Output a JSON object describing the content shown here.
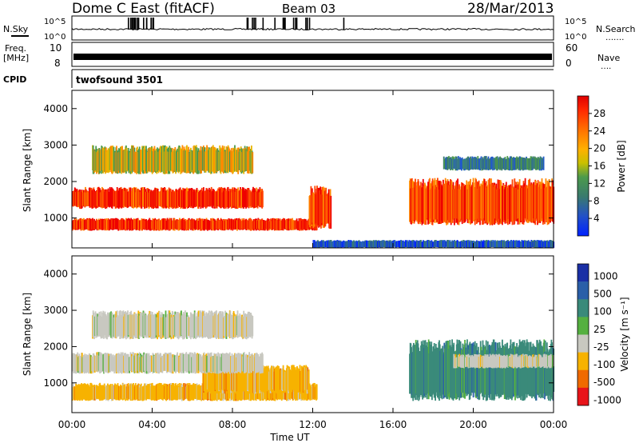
{
  "header": {
    "station": "Dome C East (fitACF)",
    "beam": "Beam 03",
    "date": "28/Mar/2013"
  },
  "left_labels": {
    "nsky": "N.Sky",
    "freq_line1": "Freq.",
    "freq_line2": "[MHz]",
    "cpid": "CPID"
  },
  "right_labels": {
    "nsearch": "N.Search",
    "nsearch_dots": "․․․․․․․",
    "nave": "Nave",
    "nave_dots": "․․․․"
  },
  "cpid_text": "twofsound 3501",
  "chart_data": [
    {
      "type": "line",
      "panel": "noise",
      "left_ticks": [
        "10^5",
        "10^0"
      ],
      "right_ticks": [
        "10^5",
        "10^0"
      ],
      "series": [
        {
          "name": "N.Sky",
          "values": "time series, roughly constant near mid-scale with spikes 02:30-04:10, 08:40-10:40, 11:00-12:00, 13:30"
        },
        {
          "name": "N.Search",
          "values": "dotted, not visibly plotted"
        }
      ]
    },
    {
      "type": "line",
      "panel": "frequency",
      "left_ticks": [
        "10",
        "8"
      ],
      "right_ticks": [
        "60",
        "0"
      ],
      "series": [
        {
          "name": "Freq.",
          "values": "alternating between about 8 and 10 MHz throughout the day"
        },
        {
          "name": "Nave",
          "values": "dotted, not visibly plotted"
        }
      ]
    },
    {
      "type": "heatmap",
      "panel": "power",
      "xlabel": "",
      "ylabel": "Slant Range [km]",
      "ylim": [
        180,
        4500
      ],
      "yticks": [
        1000,
        2000,
        3000,
        4000
      ],
      "xlim_hours": [
        0,
        24
      ],
      "colorbar": {
        "label": "Power [dB]",
        "ticks": [
          4,
          8,
          12,
          16,
          20,
          24,
          28
        ],
        "range": [
          0,
          32
        ],
        "colors": [
          "#0022ff",
          "#225bc8",
          "#3a7a6e",
          "#4c9a4c",
          "#e8b500",
          "#ff8800",
          "#ff4400",
          "#ee0000"
        ]
      },
      "regions": [
        {
          "t": [
            0.0,
            12.2
          ],
          "range_km": [
            650,
            1000
          ],
          "level_db": 28
        },
        {
          "t": [
            0.0,
            9.5
          ],
          "range_km": [
            1250,
            1850
          ],
          "level_db": 28
        },
        {
          "t": [
            1.0,
            9.0
          ],
          "range_km": [
            2200,
            3000
          ],
          "level_db": 18
        },
        {
          "t": [
            11.8,
            12.9
          ],
          "range_km": [
            700,
            1900
          ],
          "level_db": 26
        },
        {
          "t": [
            16.8,
            24.0
          ],
          "range_km": [
            800,
            2100
          ],
          "level_db": 26
        },
        {
          "t": [
            18.5,
            23.5
          ],
          "range_km": [
            2300,
            2700
          ],
          "level_db": 10
        },
        {
          "t": [
            12.0,
            24.0
          ],
          "range_km": [
            180,
            400
          ],
          "level_db": 6
        }
      ]
    },
    {
      "type": "heatmap",
      "panel": "velocity",
      "xlabel": "Time UT",
      "ylabel": "Slant Range [km]",
      "ylim": [
        180,
        4500
      ],
      "yticks": [
        1000,
        2000,
        3000,
        4000
      ],
      "xticks": [
        "00:00",
        "04:00",
        "08:00",
        "12:00",
        "16:00",
        "20:00",
        "00:00"
      ],
      "colorbar": {
        "label": "Velocity [m s⁻¹]",
        "ticks": [
          "1000",
          "500",
          "100",
          "25",
          "-25",
          "-100",
          "-500",
          "-1000"
        ],
        "colors": [
          "#1a2fa5",
          "#2a5fa8",
          "#3a8a7a",
          "#55b040",
          "#c8c8c0",
          "#f7b200",
          "#f06a00",
          "#e8141a"
        ]
      },
      "regions": [
        {
          "t": [
            0.0,
            12.2
          ],
          "range_km": [
            500,
            1000
          ],
          "velocity": "-100"
        },
        {
          "t": [
            6.5,
            11.8
          ],
          "range_km": [
            700,
            1500
          ],
          "velocity": "-100"
        },
        {
          "t": [
            0.0,
            9.5
          ],
          "range_km": [
            1250,
            1850
          ],
          "velocity": "-25 to 25"
        },
        {
          "t": [
            1.0,
            9.0
          ],
          "range_km": [
            2200,
            3000
          ],
          "velocity": "-25 to 25"
        },
        {
          "t": [
            16.8,
            24.0
          ],
          "range_km": [
            500,
            2200
          ],
          "velocity": "100"
        },
        {
          "t": [
            19.0,
            24.0
          ],
          "range_km": [
            1400,
            1800
          ],
          "velocity": "-25 to 25"
        }
      ]
    }
  ]
}
